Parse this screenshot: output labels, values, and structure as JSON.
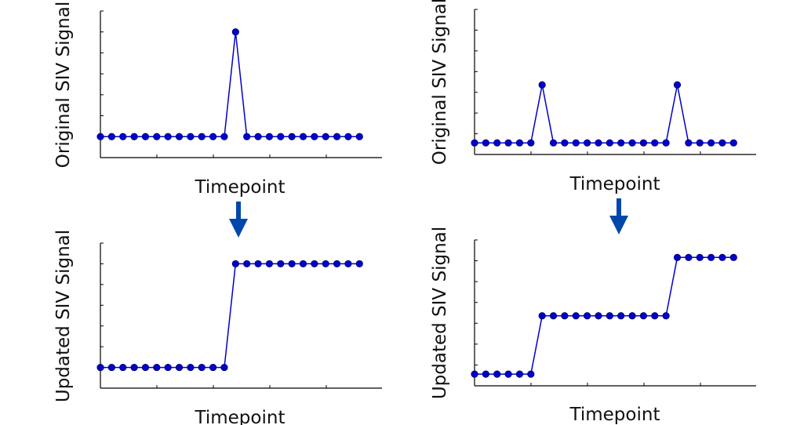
{
  "colors": {
    "series": "#0000cc",
    "point_edge": "#000066",
    "axis": "#000000",
    "arrow": "#0047ab"
  },
  "icons": [
    "down-arrow-icon",
    "down-arrow-icon"
  ],
  "chart_data": [
    {
      "type": "line",
      "position": "top-left",
      "title": "",
      "xlabel": "Timepoint",
      "ylabel": "Original SIV Signal",
      "grid": false,
      "xlim": [
        0,
        25
      ],
      "ylim": [
        0,
        7
      ],
      "series": [
        {
          "x": [
            0,
            1,
            2,
            3,
            4,
            5,
            6,
            7,
            8,
            9,
            10,
            11,
            12,
            13,
            14,
            15,
            16,
            17,
            18,
            19,
            20,
            21,
            22,
            23
          ],
          "values": [
            1,
            1,
            1,
            1,
            1,
            1,
            1,
            1,
            1,
            1,
            1,
            1,
            6,
            1,
            1,
            1,
            1,
            1,
            1,
            1,
            1,
            1,
            1,
            1
          ]
        }
      ]
    },
    {
      "type": "line",
      "position": "top-right",
      "title": "",
      "xlabel": "Timepoint",
      "ylabel": "Original SIV Signal",
      "grid": false,
      "xlim": [
        0,
        25
      ],
      "ylim": [
        0,
        5
      ],
      "series": [
        {
          "x": [
            0,
            1,
            2,
            3,
            4,
            5,
            6,
            7,
            8,
            9,
            10,
            11,
            12,
            13,
            14,
            15,
            16,
            17,
            18,
            19,
            20,
            21,
            22,
            23
          ],
          "values": [
            0.4,
            0.4,
            0.4,
            0.4,
            0.4,
            0.4,
            2.4,
            0.4,
            0.4,
            0.4,
            0.4,
            0.4,
            0.4,
            0.4,
            0.4,
            0.4,
            0.4,
            0.4,
            2.4,
            0.4,
            0.4,
            0.4,
            0.4,
            0.4
          ]
        }
      ]
    },
    {
      "type": "line",
      "position": "bottom-left",
      "title": "",
      "xlabel": "Timepoint",
      "ylabel": "Updated SIV Signal",
      "grid": false,
      "xlim": [
        0,
        25
      ],
      "ylim": [
        0,
        7
      ],
      "series": [
        {
          "x": [
            0,
            1,
            2,
            3,
            4,
            5,
            6,
            7,
            8,
            9,
            10,
            11,
            12,
            13,
            14,
            15,
            16,
            17,
            18,
            19,
            20,
            21,
            22,
            23
          ],
          "values": [
            1,
            1,
            1,
            1,
            1,
            1,
            1,
            1,
            1,
            1,
            1,
            1,
            6,
            6,
            6,
            6,
            6,
            6,
            6,
            6,
            6,
            6,
            6,
            6
          ]
        }
      ]
    },
    {
      "type": "line",
      "position": "bottom-right",
      "title": "",
      "xlabel": "Timepoint",
      "ylabel": "Updated SIV Signal",
      "grid": false,
      "xlim": [
        0,
        25
      ],
      "ylim": [
        0,
        5
      ],
      "series": [
        {
          "x": [
            0,
            1,
            2,
            3,
            4,
            5,
            6,
            7,
            8,
            9,
            10,
            11,
            12,
            13,
            14,
            15,
            16,
            17,
            18,
            19,
            20,
            21,
            22,
            23
          ],
          "values": [
            0.4,
            0.4,
            0.4,
            0.4,
            0.4,
            0.4,
            2.4,
            2.4,
            2.4,
            2.4,
            2.4,
            2.4,
            2.4,
            2.4,
            2.4,
            2.4,
            2.4,
            2.4,
            4.4,
            4.4,
            4.4,
            4.4,
            4.4,
            4.4
          ]
        }
      ]
    }
  ]
}
